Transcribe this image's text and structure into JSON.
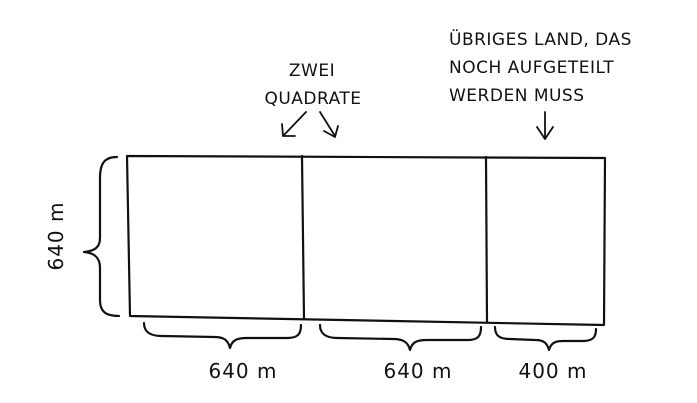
{
  "labels": {
    "squares_line1": "ZWEI",
    "squares_line2": "QUADRATE",
    "remaining_line1": "ÜBRIGES LAND, DAS",
    "remaining_line2": "NOCH AUFGETEILT",
    "remaining_line3": "WERDEN MUSS"
  },
  "dimensions": {
    "height": "640 m",
    "width_square_1": "640 m",
    "width_square_2": "640 m",
    "width_remainder": "400 m"
  },
  "colors": {
    "ink": "#111111",
    "background": "#ffffff"
  }
}
